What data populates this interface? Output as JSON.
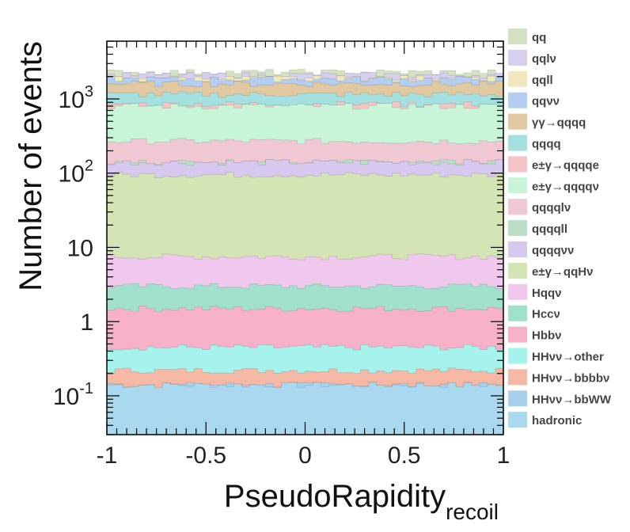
{
  "chart_data": {
    "type": "area",
    "stacked": true,
    "log_y": true,
    "xlabel": "PseudoRapidity",
    "xlabel_sub": "recoil",
    "ylabel": "Number of events",
    "xlim": [
      -1,
      1
    ],
    "ylim": [
      0.03,
      6000
    ],
    "x_ticks": [
      {
        "value": -1,
        "label": "-1"
      },
      {
        "value": -0.5,
        "label": "-0.5"
      },
      {
        "value": 0,
        "label": "0"
      },
      {
        "value": 0.5,
        "label": "0.5"
      },
      {
        "value": 1,
        "label": "1"
      }
    ],
    "y_ticks": [
      {
        "value": 0.1,
        "base": "10",
        "exp": "-1"
      },
      {
        "value": 1,
        "base": "1",
        "exp": ""
      },
      {
        "value": 10,
        "base": "10",
        "exp": ""
      },
      {
        "value": 100,
        "base": "10",
        "exp": "2"
      },
      {
        "value": 1000,
        "base": "10",
        "exp": "3"
      }
    ],
    "bins": 50,
    "legend_position": "right",
    "series_bottom_to_top": [
      {
        "name": "hadronic",
        "cumulative": 0.14,
        "color": "#aad8ee"
      },
      {
        "name": "HHνν→bbWW",
        "cumulative": 0.14,
        "color": "#a8d0ea"
      },
      {
        "name": "HHνν→bbbbν",
        "cumulative": 0.22,
        "color": "#f4b8a4"
      },
      {
        "name": "HHνν→other",
        "cumulative": 0.45,
        "color": "#a6f2ec"
      },
      {
        "name": "Hbbν",
        "cumulative": 1.5,
        "color": "#f6b0c8"
      },
      {
        "name": "Hccν",
        "cumulative": 3.0,
        "color": "#a0e0cc"
      },
      {
        "name": "Hqqν",
        "cumulative": 7.5,
        "color": "#f0c8ee"
      },
      {
        "name": "e±γ→qqHν",
        "cumulative": 95,
        "color": "#d4e4b4"
      },
      {
        "name": "qqqqνν",
        "cumulative": 140,
        "color": "#d6c8ee"
      },
      {
        "name": "qqqqll",
        "cumulative": 140,
        "color": "#b8e0c4"
      },
      {
        "name": "qqqqlν",
        "cumulative": 270,
        "color": "#f0c8d4"
      },
      {
        "name": "e±γ→qqqqν",
        "cumulative": 800,
        "color": "#c8f4d8"
      },
      {
        "name": "e±γ→qqqqe",
        "cumulative": 850,
        "color": "#f4c4c4"
      },
      {
        "name": "qqqq",
        "cumulative": 1150,
        "color": "#a4e0e0"
      },
      {
        "name": "γγ→qqqq",
        "cumulative": 1600,
        "color": "#e0c8a0"
      },
      {
        "name": "qqνν",
        "cumulative": 1850,
        "color": "#b4cef2"
      },
      {
        "name": "qqll",
        "cumulative": 1900,
        "color": "#f0e8bc"
      },
      {
        "name": "qqlν",
        "cumulative": 2100,
        "color": "#d8cef0"
      },
      {
        "name": "qq",
        "cumulative": 2300,
        "color": "#d2e2c2"
      }
    ],
    "legend_entries": [
      {
        "label": "qq",
        "color": "#d2e2c2"
      },
      {
        "label": "qqlν",
        "color": "#d8cef0"
      },
      {
        "label": "qqll",
        "color": "#f0e8bc"
      },
      {
        "label": "qqνν",
        "color": "#b4cef2"
      },
      {
        "label": "γγ→qqqq",
        "color": "#e0c8a0"
      },
      {
        "label": "qqqq",
        "color": "#a4e0e0"
      },
      {
        "label": "e±γ→qqqqe",
        "color": "#f4c4c4"
      },
      {
        "label": "e±γ→qqqqν",
        "color": "#c8f4d8"
      },
      {
        "label": "qqqqlν",
        "color": "#f0c8d4"
      },
      {
        "label": "qqqqll",
        "color": "#b8e0c4"
      },
      {
        "label": "qqqqνν",
        "color": "#d6c8ee"
      },
      {
        "label": "e±γ→qqHν",
        "color": "#d4e4b4"
      },
      {
        "label": "Hqqν",
        "color": "#f0c8ee"
      },
      {
        "label": "Hccν",
        "color": "#a0e0cc"
      },
      {
        "label": "Hbbν",
        "color": "#f6b0c8"
      },
      {
        "label": "HHνν→other",
        "color": "#a6f2ec"
      },
      {
        "label": "HHνν→bbbbν",
        "color": "#f4b8a4"
      },
      {
        "label": "HHνν→bbWW",
        "color": "#a8d0ea"
      },
      {
        "label": "hadronic",
        "color": "#aad8ee"
      }
    ]
  }
}
